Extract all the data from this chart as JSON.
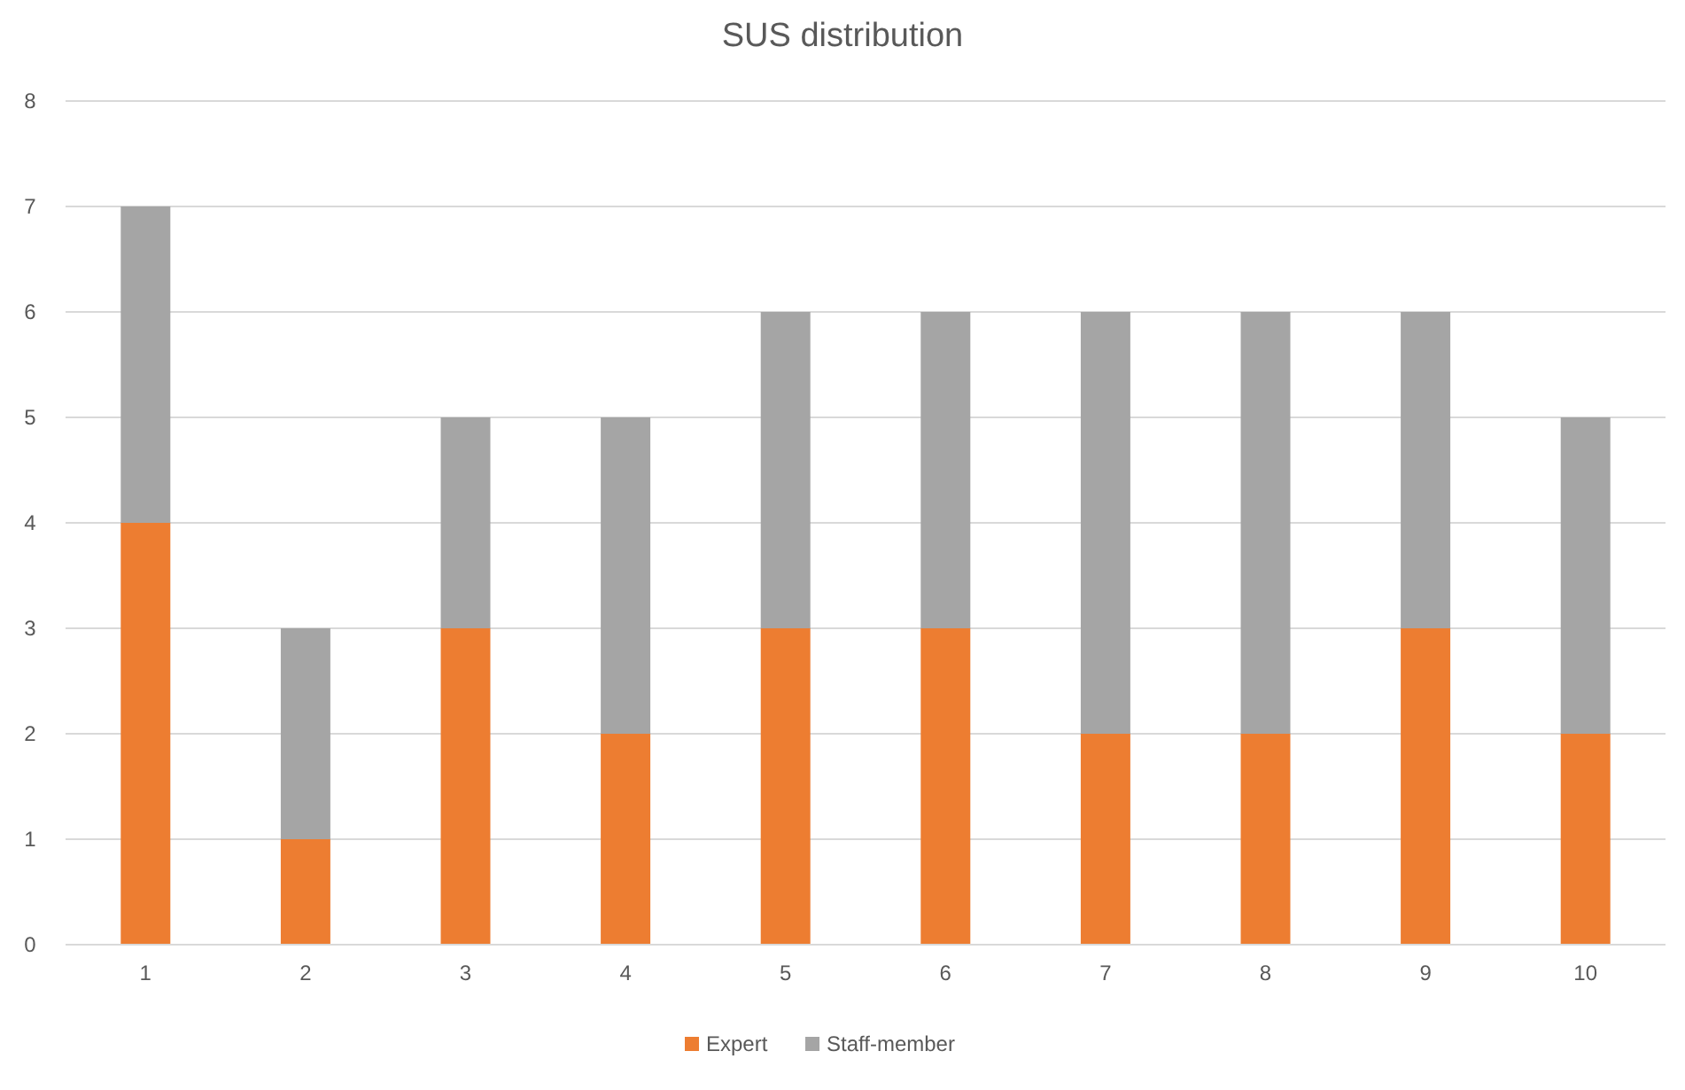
{
  "chart_data": {
    "type": "bar",
    "title": "SUS distribution",
    "stacked": true,
    "categories": [
      "1",
      "2",
      "3",
      "4",
      "5",
      "6",
      "7",
      "8",
      "9",
      "10"
    ],
    "series": [
      {
        "name": "Expert",
        "color": "#ed7d31",
        "values": [
          4,
          1,
          3,
          2,
          3,
          3,
          2,
          2,
          3,
          2
        ]
      },
      {
        "name": "Staff-member",
        "color": "#a5a5a5",
        "values": [
          3,
          2,
          2,
          3,
          3,
          3,
          4,
          4,
          3,
          3
        ]
      }
    ],
    "ylim": [
      0,
      8
    ],
    "yticks": [
      0,
      1,
      2,
      3,
      4,
      5,
      6,
      7,
      8
    ],
    "grid": "y",
    "legend": "bottom"
  }
}
